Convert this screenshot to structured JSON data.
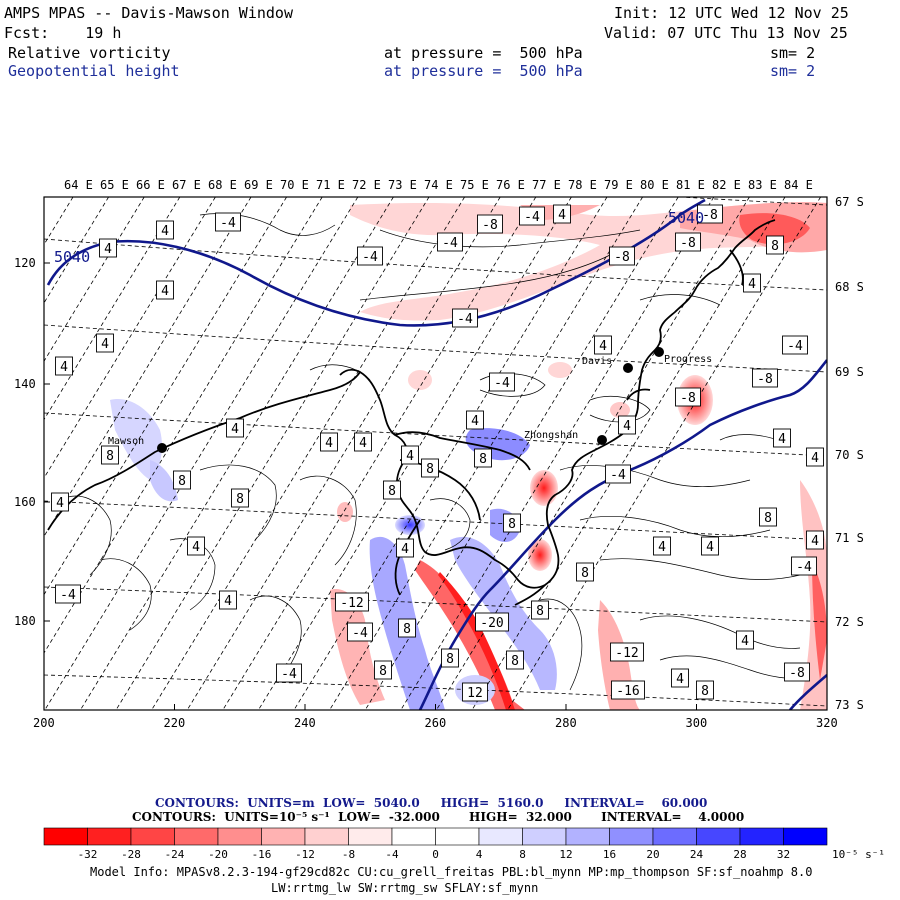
{
  "header": {
    "title": "AMPS MPAS -- Davis-Mawson Window",
    "init": "Init: 12 UTC Wed 12 Nov 25",
    "forecast": "Fcst:    19 h",
    "valid": "Valid: 07 UTC Thu 13 Nov 25",
    "field1_name": "Relative vorticity",
    "field1_level": "at pressure =  500 hPa",
    "field1_smooth": "sm= 2",
    "field2_name": "Geopotential height",
    "field2_level": "at pressure =  500 hPa",
    "field2_smooth": "sm= 2"
  },
  "map": {
    "lon_labels": [
      "64 E",
      "65 E",
      "66 E",
      "67 E",
      "68 E",
      "69 E",
      "70 E",
      "71 E",
      "72 E",
      "73 E",
      "74 E",
      "75 E",
      "76 E",
      "77 E",
      "78 E",
      "79 E",
      "80 E",
      "81 E",
      "82 E",
      "83 E",
      "84 E"
    ],
    "lat_labels": [
      "67 S",
      "68 S",
      "69 S",
      "70 S",
      "71 S",
      "72 S",
      "73 S"
    ],
    "x_ticks": [
      "200",
      "220",
      "240",
      "260",
      "280",
      "300",
      "320"
    ],
    "y_ticks": [
      "120",
      "140",
      "160",
      "180"
    ],
    "stations": [
      {
        "name": "Mawson"
      },
      {
        "name": "Davis"
      },
      {
        "name": "Zhongshan"
      },
      {
        "name": "Progress"
      }
    ],
    "height_labels": [
      "5040",
      "5040"
    ],
    "vorticity_labels": [
      "4",
      "-4",
      "-8",
      "8",
      "12",
      "-12",
      "-20",
      "-16"
    ],
    "colors": {
      "height_contour": "#10188c",
      "coast": "#000000",
      "neg_strong": "#ff0000",
      "pos_strong": "#0000ff"
    }
  },
  "contours": {
    "height_line": "CONTOURS:  UNITS=m  LOW=  5040.0     HIGH=  5160.0     INTERVAL=    60.000",
    "vort_line": "CONTOURS:  UNITS=10⁻⁵ s⁻¹  LOW=  -32.000       HIGH=  32.000       INTERVAL=    4.0000"
  },
  "colorbar": {
    "ticks": [
      "-32",
      "-28",
      "-24",
      "-20",
      "-16",
      "-12",
      "-8",
      "-4",
      "0",
      "4",
      "8",
      "12",
      "16",
      "20",
      "24",
      "28",
      "32"
    ],
    "unit": "10⁻⁵ s⁻¹",
    "colors": [
      "#ff0000",
      "#ff2020",
      "#ff4545",
      "#ff6a6a",
      "#ff8e8e",
      "#ffb2b2",
      "#ffd0d0",
      "#ffebeb",
      "#ffffff",
      "#ffffff",
      "#e8e8ff",
      "#cfcfff",
      "#b2b2ff",
      "#9090ff",
      "#6c6cff",
      "#4747ff",
      "#2323ff",
      "#0000ff"
    ]
  },
  "model_info": {
    "line1": "Model Info: MPASv8.2.3-194-gf29cd82c CU:cu_grell_freitas PBL:bl_mynn MP:mp_thompson SF:sf_noahmp 8.0",
    "line2": "LW:rrtmg_lw SW:rrtmg_sw SFLAY:sf_mynn"
  }
}
